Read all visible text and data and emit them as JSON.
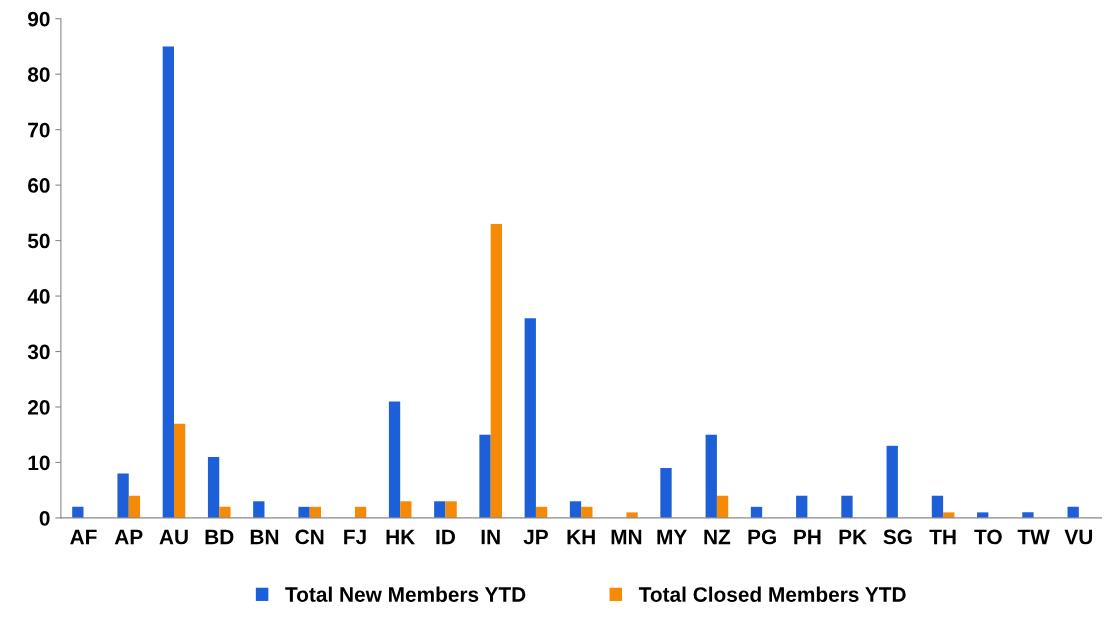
{
  "chart_data": {
    "type": "bar",
    "categories": [
      "AF",
      "AP",
      "AU",
      "BD",
      "BN",
      "CN",
      "FJ",
      "HK",
      "ID",
      "IN",
      "JP",
      "KH",
      "MN",
      "MY",
      "NZ",
      "PG",
      "PH",
      "PK",
      "SG",
      "TH",
      "TO",
      "TW",
      "VU"
    ],
    "series": [
      {
        "name": "Total New Members YTD",
        "color": "#1c5fd8",
        "values": [
          2,
          8,
          85,
          11,
          3,
          2,
          0,
          21,
          3,
          15,
          36,
          3,
          0,
          9,
          15,
          2,
          4,
          4,
          13,
          4,
          1,
          1,
          2
        ]
      },
      {
        "name": "Total Closed Members YTD",
        "color": "#f58a07",
        "values": [
          0,
          4,
          17,
          2,
          0,
          2,
          2,
          3,
          3,
          53,
          2,
          2,
          1,
          0,
          4,
          0,
          0,
          0,
          0,
          1,
          0,
          0,
          0
        ]
      }
    ],
    "ylim": [
      0,
      90
    ],
    "yticks": [
      0,
      10,
      20,
      30,
      40,
      50,
      60,
      70,
      80,
      90
    ],
    "grid": false,
    "legend": "bottom"
  }
}
